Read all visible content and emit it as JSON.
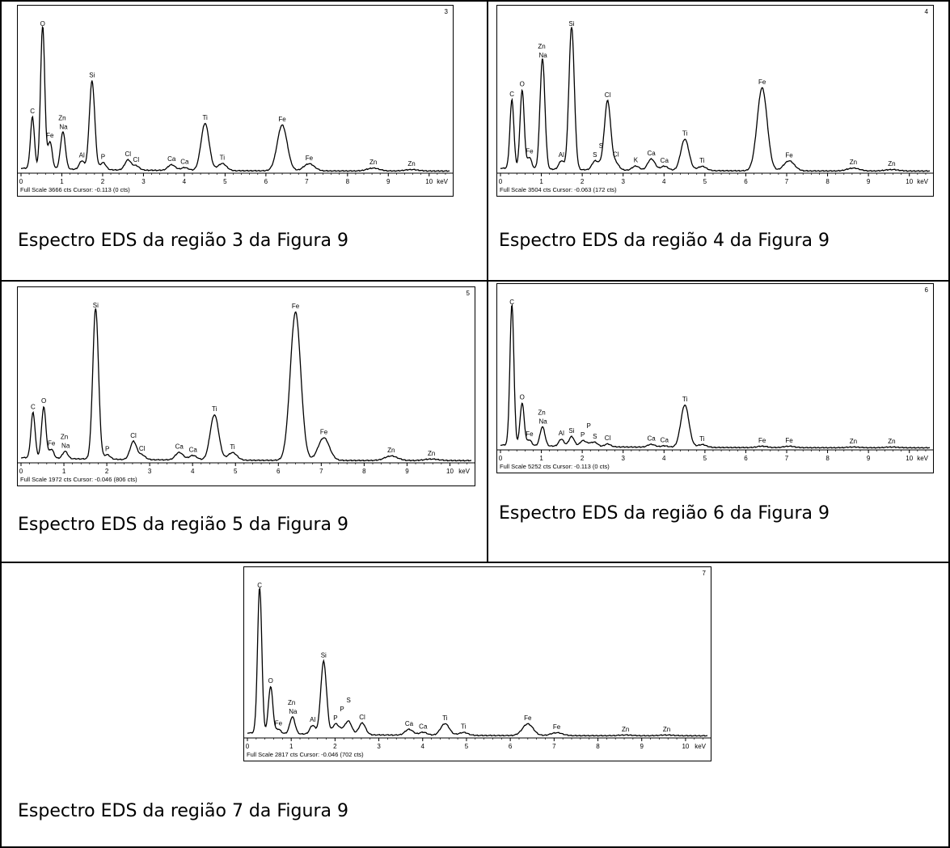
{
  "chart_data": [
    {
      "type": "line",
      "panel_number": "3",
      "xlabel": "keV",
      "xlim": [
        0,
        10.5
      ],
      "ticks": [
        "0",
        "1",
        "2",
        "3",
        "4",
        "5",
        "6",
        "7",
        "8",
        "9",
        "10"
      ],
      "footer": "Full Scale 3666 cts Cursor: -0.113  (0 cts)",
      "caption": "Espectro EDS da região 3 da Figura 9",
      "peaks": [
        {
          "element": "C",
          "x": 0.28,
          "y": 0.36
        },
        {
          "element": "O",
          "x": 0.53,
          "y": 1.0
        },
        {
          "element": "Fe",
          "x": 0.71,
          "y": 0.19
        },
        {
          "element": "Na",
          "x": 1.04,
          "y": 0.15
        },
        {
          "element": "Zn",
          "x": 1.01,
          "y": 0.12
        },
        {
          "element": "Al",
          "x": 1.49,
          "y": 0.06
        },
        {
          "element": "Si",
          "x": 1.74,
          "y": 0.62
        },
        {
          "element": "P",
          "x": 2.01,
          "y": 0.05
        },
        {
          "element": "Cl",
          "x": 2.62,
          "y": 0.07
        },
        {
          "element": "Cl",
          "x": 2.82,
          "y": 0.03
        },
        {
          "element": "Ca",
          "x": 3.69,
          "y": 0.04
        },
        {
          "element": "Ca",
          "x": 4.01,
          "y": 0.02
        },
        {
          "element": "Ti",
          "x": 4.51,
          "y": 0.33
        },
        {
          "element": "Ti",
          "x": 4.93,
          "y": 0.05
        },
        {
          "element": "Fe",
          "x": 6.4,
          "y": 0.32
        },
        {
          "element": "Fe",
          "x": 7.06,
          "y": 0.05
        },
        {
          "element": "Zn",
          "x": 8.63,
          "y": 0.02
        },
        {
          "element": "Zn",
          "x": 9.57,
          "y": 0.01
        }
      ]
    },
    {
      "type": "line",
      "panel_number": "4",
      "xlabel": "keV",
      "xlim": [
        0,
        10.5
      ],
      "ticks": [
        "0",
        "1",
        "2",
        "3",
        "4",
        "5",
        "6",
        "7",
        "8",
        "9",
        "10"
      ],
      "footer": "Full Scale 3504 cts Cursor: -0.063  (172 cts)",
      "caption": "Espectro EDS da região 4 da Figura 9",
      "peaks": [
        {
          "element": "C",
          "x": 0.28,
          "y": 0.48
        },
        {
          "element": "O",
          "x": 0.53,
          "y": 0.55
        },
        {
          "element": "Fe",
          "x": 0.71,
          "y": 0.08
        },
        {
          "element": "Na",
          "x": 1.04,
          "y": 0.45
        },
        {
          "element": "Zn",
          "x": 1.01,
          "y": 0.35
        },
        {
          "element": "Al",
          "x": 1.49,
          "y": 0.06
        },
        {
          "element": "Si",
          "x": 1.74,
          "y": 1.0
        },
        {
          "element": "S",
          "x": 2.31,
          "y": 0.06
        },
        {
          "element": "S",
          "x": 2.46,
          "y": 0.03
        },
        {
          "element": "Cl",
          "x": 2.62,
          "y": 0.48
        },
        {
          "element": "Cl",
          "x": 2.82,
          "y": 0.05
        },
        {
          "element": "K",
          "x": 3.31,
          "y": 0.03
        },
        {
          "element": "Ca",
          "x": 3.69,
          "y": 0.08
        },
        {
          "element": "Ca",
          "x": 4.01,
          "y": 0.03
        },
        {
          "element": "Ti",
          "x": 4.51,
          "y": 0.22
        },
        {
          "element": "Ti",
          "x": 4.93,
          "y": 0.03
        },
        {
          "element": "Fe",
          "x": 6.4,
          "y": 0.58
        },
        {
          "element": "Fe",
          "x": 7.06,
          "y": 0.07
        },
        {
          "element": "Zn",
          "x": 8.63,
          "y": 0.02
        },
        {
          "element": "Zn",
          "x": 9.57,
          "y": 0.01
        }
      ]
    },
    {
      "type": "line",
      "panel_number": "5",
      "xlabel": "keV",
      "xlim": [
        0,
        10.5
      ],
      "ticks": [
        "0",
        "1",
        "2",
        "3",
        "4",
        "5",
        "6",
        "7",
        "8",
        "9",
        "10"
      ],
      "footer": "Full Scale 1972 cts Cursor: -0.046  (806 cts)",
      "caption": "Espectro EDS da região 5 da Figura 9",
      "peaks": [
        {
          "element": "C",
          "x": 0.28,
          "y": 0.3
        },
        {
          "element": "O",
          "x": 0.53,
          "y": 0.34
        },
        {
          "element": "Fe",
          "x": 0.71,
          "y": 0.06
        },
        {
          "element": "Na",
          "x": 1.04,
          "y": 0.03
        },
        {
          "element": "Zn",
          "x": 1.01,
          "y": 0.02
        },
        {
          "element": "Si",
          "x": 1.74,
          "y": 1.0
        },
        {
          "element": "P",
          "x": 2.01,
          "y": 0.03
        },
        {
          "element": "Cl",
          "x": 2.62,
          "y": 0.12
        },
        {
          "element": "Cl",
          "x": 2.82,
          "y": 0.03
        },
        {
          "element": "Ca",
          "x": 3.69,
          "y": 0.05
        },
        {
          "element": "Ca",
          "x": 4.01,
          "y": 0.03
        },
        {
          "element": "Ti",
          "x": 4.51,
          "y": 0.3
        },
        {
          "element": "Ti",
          "x": 4.93,
          "y": 0.05
        },
        {
          "element": "Fe",
          "x": 6.4,
          "y": 0.98
        },
        {
          "element": "Fe",
          "x": 7.06,
          "y": 0.15
        },
        {
          "element": "Zn",
          "x": 8.63,
          "y": 0.03
        },
        {
          "element": "Zn",
          "x": 9.57,
          "y": 0.01
        }
      ]
    },
    {
      "type": "line",
      "panel_number": "6",
      "xlabel": "keV",
      "xlim": [
        0,
        10.5
      ],
      "ticks": [
        "0",
        "1",
        "2",
        "3",
        "4",
        "5",
        "6",
        "7",
        "8",
        "9",
        "10"
      ],
      "footer": "Full Scale 5252 cts Cursor: -0.113  (0 cts)",
      "caption": "Espectro EDS da região 6 da Figura 9",
      "peaks": [
        {
          "element": "C",
          "x": 0.28,
          "y": 1.0
        },
        {
          "element": "O",
          "x": 0.53,
          "y": 0.3
        },
        {
          "element": "Fe",
          "x": 0.71,
          "y": 0.04
        },
        {
          "element": "Na",
          "x": 1.04,
          "y": 0.08
        },
        {
          "element": "Zn",
          "x": 1.01,
          "y": 0.06
        },
        {
          "element": "Al",
          "x": 1.49,
          "y": 0.05
        },
        {
          "element": "Si",
          "x": 1.74,
          "y": 0.07
        },
        {
          "element": "P",
          "x": 2.01,
          "y": 0.04
        },
        {
          "element": "P",
          "x": 2.16,
          "y": 0.02
        },
        {
          "element": "S",
          "x": 2.31,
          "y": 0.03
        },
        {
          "element": "Cl",
          "x": 2.62,
          "y": 0.02
        },
        {
          "element": "Ca",
          "x": 3.69,
          "y": 0.02
        },
        {
          "element": "Ca",
          "x": 4.01,
          "y": 0.01
        },
        {
          "element": "Ti",
          "x": 4.51,
          "y": 0.3
        },
        {
          "element": "Ti",
          "x": 4.93,
          "y": 0.02
        },
        {
          "element": "Fe",
          "x": 6.4,
          "y": 0.01
        },
        {
          "element": "Fe",
          "x": 7.06,
          "y": 0.01
        },
        {
          "element": "Zn",
          "x": 8.63,
          "y": 0.005
        },
        {
          "element": "Zn",
          "x": 9.57,
          "y": 0.005
        }
      ]
    },
    {
      "type": "line",
      "panel_number": "7",
      "xlabel": "keV",
      "xlim": [
        0,
        10.5
      ],
      "ticks": [
        "0",
        "1",
        "2",
        "3",
        "4",
        "5",
        "6",
        "7",
        "8",
        "9",
        "10"
      ],
      "footer": "Full Scale 2817 cts Cursor: -0.046  (702 cts)",
      "caption": "Espectro EDS da região 7 da Figura 9",
      "peaks": [
        {
          "element": "C",
          "x": 0.28,
          "y": 1.0
        },
        {
          "element": "O",
          "x": 0.53,
          "y": 0.32
        },
        {
          "element": "Fe",
          "x": 0.71,
          "y": 0.03
        },
        {
          "element": "Na",
          "x": 1.04,
          "y": 0.07
        },
        {
          "element": "Zn",
          "x": 1.01,
          "y": 0.05
        },
        {
          "element": "Al",
          "x": 1.49,
          "y": 0.06
        },
        {
          "element": "Si",
          "x": 1.74,
          "y": 0.5
        },
        {
          "element": "P",
          "x": 2.01,
          "y": 0.07
        },
        {
          "element": "P",
          "x": 2.16,
          "y": 0.03
        },
        {
          "element": "S",
          "x": 2.31,
          "y": 0.09
        },
        {
          "element": "Cl",
          "x": 2.62,
          "y": 0.08
        },
        {
          "element": "Ca",
          "x": 3.69,
          "y": 0.04
        },
        {
          "element": "Ca",
          "x": 4.01,
          "y": 0.02
        },
        {
          "element": "Ti",
          "x": 4.51,
          "y": 0.08
        },
        {
          "element": "Ti",
          "x": 4.93,
          "y": 0.02
        },
        {
          "element": "Fe",
          "x": 6.4,
          "y": 0.08
        },
        {
          "element": "Fe",
          "x": 7.06,
          "y": 0.02
        },
        {
          "element": "Zn",
          "x": 8.63,
          "y": 0.005
        },
        {
          "element": "Zn",
          "x": 9.57,
          "y": 0.005
        }
      ]
    }
  ]
}
